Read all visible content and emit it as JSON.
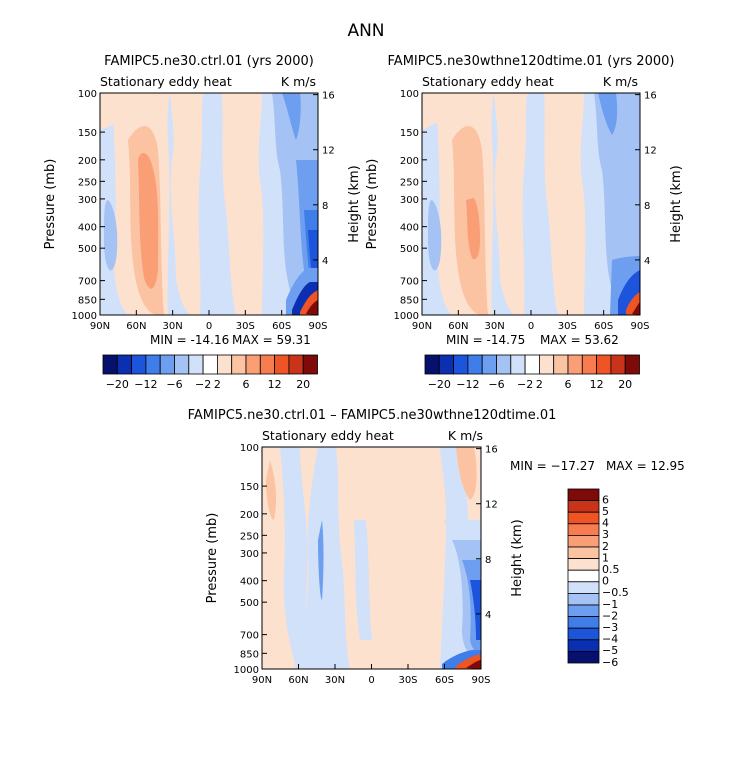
{
  "page_title": "ANN",
  "colormaps": {
    "abs": [
      "#08106e",
      "#0a2fb0",
      "#1c55dc",
      "#3f7de8",
      "#6e9ef0",
      "#a4c2f4",
      "#d2e1fa",
      "#ffffff",
      "#fde1cf",
      "#fcc3a2",
      "#fa9e76",
      "#f77c4f",
      "#ef5424",
      "#c9331a",
      "#7e0a0a"
    ],
    "diff": [
      "#08106e",
      "#0a2fb0",
      "#1c55dc",
      "#3f7de8",
      "#6e9ef0",
      "#a4c2f4",
      "#d2e1fa",
      "#ffffff",
      "#fde1cf",
      "#fcc3a2",
      "#fa9e76",
      "#f77c4f",
      "#ef5424",
      "#c9331a",
      "#7e0a0a"
    ]
  },
  "chart_data": [
    {
      "type": "contour",
      "panel": "top-left",
      "title": "FAMIPC5.ne30.ctrl.01 (yrs 2000)",
      "left_string": "Stationary eddy heat",
      "right_string": "K m/s",
      "xlabel": "",
      "ylabel": "Pressure (mb)",
      "ylabel_right": "Height (km)",
      "x_ticks": [
        "90N",
        "60N",
        "30N",
        "0",
        "30S",
        "60S",
        "90S"
      ],
      "x_values": [
        90,
        60,
        30,
        0,
        -30,
        -60,
        -90
      ],
      "y_ticks": [
        "100",
        "150",
        "200",
        "250",
        "300",
        "400",
        "500",
        "700",
        "850",
        "1000"
      ],
      "y_values": [
        100,
        150,
        200,
        250,
        300,
        400,
        500,
        700,
        850,
        1000
      ],
      "y_right_ticks": [
        "16",
        "12",
        "8",
        "4"
      ],
      "y_right_values": [
        16,
        12,
        8,
        4
      ],
      "ylim": [
        1000,
        100
      ],
      "min_label": "MIN = -14.16",
      "max_label": "MAX =  59.31",
      "min": -14.16,
      "max": 59.31,
      "colorbar_labels": [
        "-20",
        "-12",
        "-6",
        "-2",
        "2",
        "6",
        "12",
        "20"
      ],
      "contour_levels": [
        -20,
        -16,
        -12,
        -8,
        -6,
        -4,
        -2,
        0,
        2,
        4,
        6,
        8,
        12,
        16,
        20
      ],
      "features": [
        {
          "lat": 40,
          "p_range": [
            200,
            800
          ],
          "value": 4
        },
        {
          "lat": -72,
          "p_range": [
            300,
            850
          ],
          "value": -14
        },
        {
          "lat": -82,
          "p_range": [
            850,
            1000
          ],
          "value": 20
        }
      ]
    },
    {
      "type": "contour",
      "panel": "top-right",
      "title": "FAMIPC5.ne30wthne120dtime.01 (yrs 2000)",
      "left_string": "Stationary eddy heat",
      "right_string": "K m/s",
      "xlabel": "",
      "ylabel": "Pressure (mb)",
      "ylabel_right": "Height (km)",
      "x_ticks": [
        "90N",
        "60N",
        "30N",
        "0",
        "30S",
        "60S",
        "90S"
      ],
      "x_values": [
        90,
        60,
        30,
        0,
        -30,
        -60,
        -90
      ],
      "y_ticks": [
        "100",
        "150",
        "200",
        "250",
        "300",
        "400",
        "500",
        "700",
        "850",
        "1000"
      ],
      "y_values": [
        100,
        150,
        200,
        250,
        300,
        400,
        500,
        700,
        850,
        1000
      ],
      "y_right_ticks": [
        "16",
        "12",
        "8",
        "4"
      ],
      "y_right_values": [
        16,
        12,
        8,
        4
      ],
      "ylim": [
        1000,
        100
      ],
      "min_label": "MIN = -14.75",
      "max_label": "MAX =  53.62",
      "min": -14.75,
      "max": 53.62,
      "colorbar_labels": [
        "-20",
        "-12",
        "-6",
        "-2",
        "2",
        "6",
        "12",
        "20"
      ],
      "contour_levels": [
        -20,
        -16,
        -12,
        -8,
        -6,
        -4,
        -2,
        0,
        2,
        4,
        6,
        8,
        12,
        16,
        20
      ],
      "features": [
        {
          "lat": 42,
          "p_range": [
            200,
            800
          ],
          "value": 4
        },
        {
          "lat": -72,
          "p_range": [
            600,
            900
          ],
          "value": -10
        },
        {
          "lat": -82,
          "p_range": [
            850,
            1000
          ],
          "value": 20
        }
      ]
    },
    {
      "type": "contour",
      "panel": "bottom",
      "title": "FAMIPC5.ne30.ctrl.01 – FAMIPC5.ne30wthne120dtime.01",
      "left_string": "Stationary eddy heat",
      "right_string": "K m/s",
      "xlabel": "",
      "ylabel": "Pressure (mb)",
      "ylabel_right": "Height (km)",
      "x_ticks": [
        "90N",
        "60N",
        "30N",
        "0",
        "30S",
        "60S",
        "90S"
      ],
      "x_values": [
        90,
        60,
        30,
        0,
        -30,
        -60,
        -90
      ],
      "y_ticks": [
        "100",
        "150",
        "200",
        "250",
        "300",
        "400",
        "500",
        "700",
        "850",
        "1000"
      ],
      "y_values": [
        100,
        150,
        200,
        250,
        300,
        400,
        500,
        700,
        850,
        1000
      ],
      "y_right_ticks": [
        "16",
        "12",
        "8",
        "4"
      ],
      "y_right_values": [
        16,
        12,
        8,
        4
      ],
      "ylim": [
        1000,
        100
      ],
      "min_label": "MIN = −17.27",
      "max_label": "MAX =  12.95",
      "min": -17.27,
      "max": 12.95,
      "colorbar_labels": [
        "6",
        "5",
        "4",
        "3",
        "2",
        "1",
        "0.5",
        "0",
        "−0.5",
        "−1",
        "−2",
        "−3",
        "−4",
        "−5",
        "−6"
      ],
      "contour_levels": [
        -6,
        -5,
        -4,
        -3,
        -2,
        -1,
        -0.5,
        0,
        0.5,
        1,
        2,
        3,
        4,
        5,
        6
      ],
      "features": [
        {
          "lat": -55,
          "p_range": [
            100,
            300
          ],
          "value": 1
        },
        {
          "lat": -82,
          "p_range": [
            300,
            900
          ],
          "value": -6
        },
        {
          "lat": -80,
          "p_range": [
            900,
            1000
          ],
          "value": 6
        }
      ]
    }
  ]
}
